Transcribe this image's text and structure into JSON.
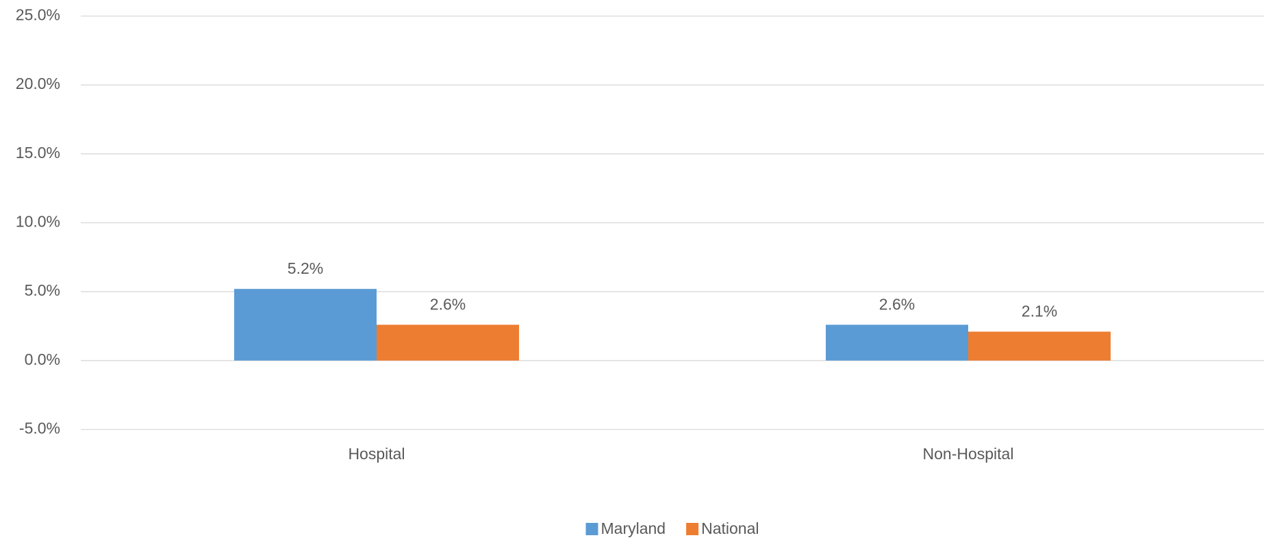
{
  "chart_data": {
    "type": "bar",
    "categories": [
      "Hospital",
      "Non-Hospital"
    ],
    "series": [
      {
        "name": "Maryland",
        "color": "#5b9bd5",
        "values": [
          5.2,
          2.6
        ],
        "value_labels": [
          "5.2%",
          "2.6%"
        ]
      },
      {
        "name": "National",
        "color": "#ed7d31",
        "values": [
          2.6,
          2.1
        ],
        "value_labels": [
          "2.6%",
          "2.1%"
        ]
      }
    ],
    "ylim": [
      -5,
      25
    ],
    "yticks": [
      {
        "value": -5,
        "label": "-5.0%"
      },
      {
        "value": 0,
        "label": "0.0%"
      },
      {
        "value": 5,
        "label": "5.0%"
      },
      {
        "value": 10,
        "label": "10.0%"
      },
      {
        "value": 15,
        "label": "15.0%"
      },
      {
        "value": 20,
        "label": "20.0%"
      },
      {
        "value": 25,
        "label": "25.0%"
      }
    ],
    "grid": true,
    "legend": "bottom"
  }
}
